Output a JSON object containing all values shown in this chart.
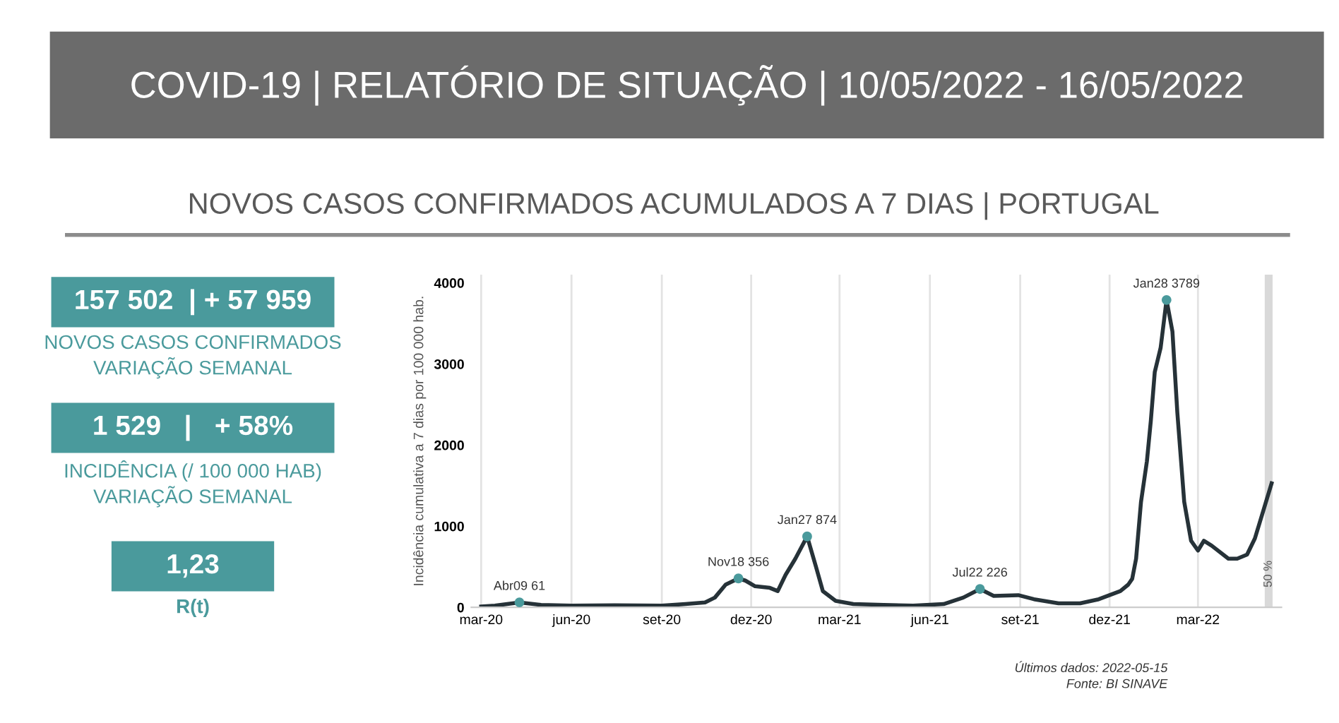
{
  "chart_data": [
    {
      "type": "line",
      "title": "COVID-19 | RELATÓRIO DE SITUAÇÃO | 10/05/2022 - 16/05/2022",
      "subtitle": "NOVOS CASOS CONFIRMADOS ACUMULADOS A 7 DIAS | PORTUGAL",
      "ylabel": "Incidência cumulativa a 7 dias por 100 000 hab.",
      "x": [
        "2020-03-01",
        "2020-03-15",
        "2020-04-09",
        "2020-05-01",
        "2020-06-01",
        "2020-07-15",
        "2020-09-01",
        "2020-09-25",
        "2020-10-15",
        "2020-10-25",
        "2020-11-05",
        "2020-11-18",
        "2020-11-25",
        "2020-12-05",
        "2020-12-20",
        "2020-12-28",
        "2021-01-05",
        "2021-01-15",
        "2021-01-27",
        "2021-02-05",
        "2021-02-12",
        "2021-02-25",
        "2021-03-15",
        "2021-04-15",
        "2021-05-15",
        "2021-06-15",
        "2021-07-05",
        "2021-07-22",
        "2021-08-05",
        "2021-08-30",
        "2021-09-15",
        "2021-10-10",
        "2021-11-01",
        "2021-11-20",
        "2021-12-01",
        "2021-12-12",
        "2021-12-20",
        "2021-12-24",
        "2021-12-28",
        "2022-01-02",
        "2022-01-08",
        "2022-01-12",
        "2022-01-16",
        "2022-01-22",
        "2022-01-28",
        "2022-02-03",
        "2022-02-08",
        "2022-02-15",
        "2022-02-22",
        "2022-03-01",
        "2022-03-07",
        "2022-03-15",
        "2022-04-01",
        "2022-04-10",
        "2022-04-20",
        "2022-04-28",
        "2022-05-15"
      ],
      "series": [
        {
          "color": "#263238",
          "values": [
            10,
            20,
            61,
            30,
            20,
            25,
            20,
            40,
            60,
            120,
            280,
            356,
            330,
            260,
            240,
            200,
            400,
            600,
            874,
            500,
            200,
            80,
            40,
            30,
            20,
            40,
            120,
            226,
            140,
            150,
            100,
            50,
            50,
            100,
            150,
            200,
            280,
            350,
            600,
            1300,
            1800,
            2300,
            2900,
            3200,
            3789,
            3400,
            2400,
            1300,
            820,
            700,
            820,
            760,
            600,
            600,
            650,
            850,
            1529
          ]
        }
      ],
      "xlim": [
        "2020-02-20",
        "2022-05-25"
      ],
      "ylim": [
        0,
        4100
      ],
      "xticks": [
        {
          "value": "2020-03-01",
          "label": "mar-20"
        },
        {
          "value": "2020-06-01",
          "label": "jun-20"
        },
        {
          "value": "2020-09-01",
          "label": "set-20"
        },
        {
          "value": "2020-12-01",
          "label": "dez-20"
        },
        {
          "value": "2021-03-01",
          "label": "mar-21"
        },
        {
          "value": "2021-06-01",
          "label": "jun-21"
        },
        {
          "value": "2021-09-01",
          "label": "set-21"
        },
        {
          "value": "2021-12-01",
          "label": "dez-21"
        },
        {
          "value": "2022-03-01",
          "label": "mar-22"
        }
      ],
      "yticks": [
        0,
        1000,
        2000,
        3000,
        4000
      ],
      "grid": "x",
      "bands": [
        {
          "axis": "x",
          "from": "2022-05-09",
          "to": "2022-05-15",
          "label": "50 %",
          "color": "#d9d9d9"
        }
      ],
      "annotations": [
        {
          "text": "Abr09 61",
          "x": "2020-04-09",
          "y": 61
        },
        {
          "text": "Nov18 356",
          "x": "2020-11-18",
          "y": 356
        },
        {
          "text": "Jan27 874",
          "x": "2021-01-27",
          "y": 874
        },
        {
          "text": "Jul22 226",
          "x": "2021-07-22",
          "y": 226
        },
        {
          "text": "Jan28 3789",
          "x": "2022-01-28",
          "y": 3789
        },
        "Últimos dados: 2022-05-15",
        "Fonte: BI SINAVE"
      ]
    },
    {
      "type": "other",
      "annotations": [
        "157 502  | + 57 959",
        "NOVOS CASOS CONFIRMADOS\nVARIAÇÃO SEMANAL",
        "1 529   |   + 58%",
        "INCIDÊNCIA (/ 100 000 HAB)\nVARIAÇÃO SEMANAL",
        "1,23",
        "R(t)"
      ]
    }
  ]
}
